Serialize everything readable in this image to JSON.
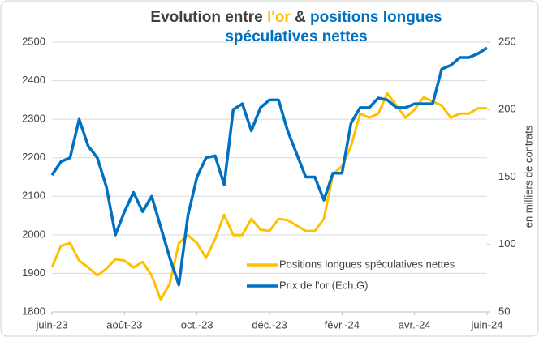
{
  "chart_data": {
    "type": "line",
    "title": [
      {
        "text": "Evolution entre ",
        "color": "#404040"
      },
      {
        "text": "l'or",
        "color": "#FFC000"
      },
      {
        "text": " & ",
        "color": "#404040"
      },
      {
        "text": "positions longues spéculatives nettes",
        "color": "#0070C0"
      }
    ],
    "y2_label": "en milliers de contrats",
    "x": [
      0,
      0.25,
      0.5,
      0.75,
      1,
      1.25,
      1.5,
      1.75,
      2,
      2.25,
      2.5,
      2.75,
      3,
      3.25,
      3.5,
      3.75,
      4,
      4.25,
      4.5,
      4.75,
      5,
      5.25,
      5.5,
      5.75,
      6,
      6.25,
      6.5,
      6.75,
      7,
      7.25,
      7.5,
      7.75,
      8,
      8.25,
      8.5,
      8.75,
      9,
      9.25,
      9.5,
      9.75,
      10,
      10.25,
      10.5,
      10.75,
      11,
      11.25,
      11.5,
      11.75,
      12
    ],
    "xlim": [
      0,
      12
    ],
    "xticks": [
      {
        "value": 0,
        "label": "juin-23"
      },
      {
        "value": 2,
        "label": "août-23"
      },
      {
        "value": 4,
        "label": "oct.-23"
      },
      {
        "value": 6,
        "label": "déc.-23"
      },
      {
        "value": 8,
        "label": "févr.-24"
      },
      {
        "value": 10,
        "label": "avr.-24"
      },
      {
        "value": 12,
        "label": "juin-24"
      }
    ],
    "ylim": [
      1800,
      2500
    ],
    "yticks": [
      1800,
      1900,
      2000,
      2100,
      2200,
      2300,
      2400,
      2500
    ],
    "y2lim": [
      50,
      250
    ],
    "y2ticks": [
      50,
      100,
      150,
      200,
      250
    ],
    "grid": true,
    "legend": "lower right",
    "series": [
      {
        "name": "Positions longues spéculatives nettes",
        "color": "#FFC000",
        "axis": "y2",
        "values": [
          83,
          99,
          101,
          88,
          83,
          77,
          82,
          89,
          88,
          83,
          87,
          77,
          59,
          71,
          101,
          107,
          101,
          90,
          104,
          122,
          107,
          107,
          119,
          111,
          110,
          119,
          118,
          114,
          110,
          110,
          119,
          152,
          158,
          173,
          197,
          194,
          197,
          212,
          203,
          194,
          200,
          209,
          206,
          203,
          194,
          197,
          197,
          201,
          201
        ]
      },
      {
        "name": "Prix de l'or (Ech.G)",
        "color": "#0070C0",
        "values": [
          2155,
          2190,
          2200,
          2300,
          2230,
          2200,
          2125,
          2000,
          2060,
          2110,
          2060,
          2100,
          2020,
          1940,
          1870,
          2050,
          2150,
          2200,
          2205,
          2130,
          2325,
          2340,
          2270,
          2330,
          2350,
          2350,
          2270,
          2210,
          2150,
          2150,
          2090,
          2160,
          2160,
          2290,
          2330,
          2330,
          2355,
          2350,
          2330,
          2330,
          2340,
          2340,
          2340,
          2430,
          2440,
          2460,
          2460,
          2470,
          2485
        ]
      }
    ]
  }
}
